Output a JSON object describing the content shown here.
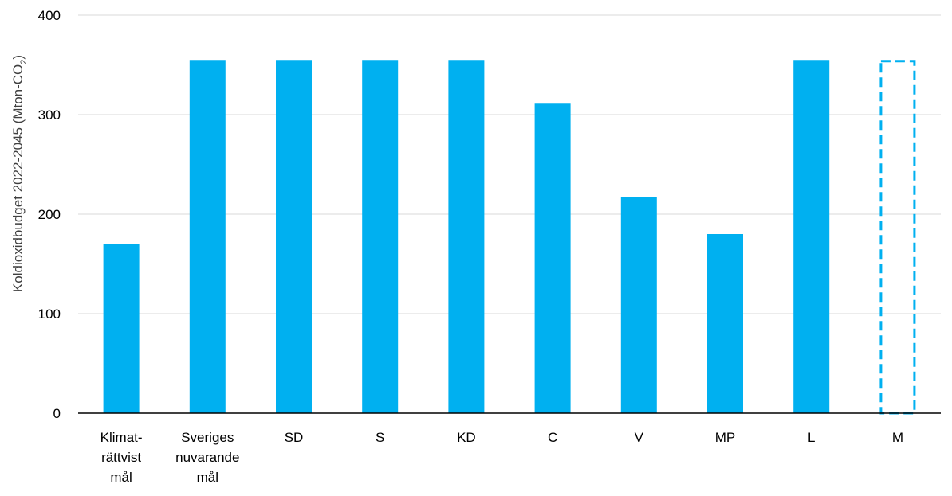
{
  "chart_data": {
    "type": "bar",
    "title": "",
    "xlabel": "",
    "ylabel": {
      "main": "Koldioxidbudget 2022-2045 (Mton-CO",
      "subscript": "2",
      "close": ")"
    },
    "ylim": [
      0,
      400
    ],
    "yticks": [
      "0",
      "100",
      "200",
      "300",
      "400"
    ],
    "grid": true,
    "legend": "none",
    "categories": [
      [
        "Klimat-",
        "rättvist",
        "mål"
      ],
      [
        "Sveriges",
        "nuvarande",
        "mål"
      ],
      [
        "SD"
      ],
      [
        "S"
      ],
      [
        "KD"
      ],
      [
        "C"
      ],
      [
        "V"
      ],
      [
        "MP"
      ],
      [
        "L"
      ],
      [
        "M"
      ]
    ],
    "values": [
      170,
      355,
      355,
      355,
      355,
      311,
      217,
      180,
      355,
      355
    ],
    "styles": [
      "solid",
      "solid",
      "solid",
      "solid",
      "solid",
      "solid",
      "solid",
      "solid",
      "solid",
      "dashed"
    ],
    "colors": {
      "bar": "#00B0F0",
      "dashed_outline": "#00B0F0",
      "grid": "#D9D9D9",
      "axis": "#000000",
      "text": "#000000",
      "ylabel_text": "#404040"
    }
  }
}
